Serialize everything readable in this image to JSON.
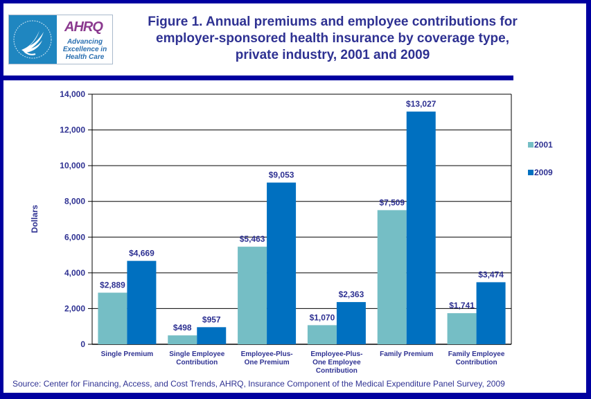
{
  "logo": {
    "hhs_name": "hhs-eagle-logo",
    "ahrq_word": "AHRQ",
    "ahrq_tagline": [
      "Advancing",
      "Excellence in",
      "Health Care"
    ]
  },
  "title_lines": [
    "Figure 1. Annual premiums and employee contributions for",
    "employer-sponsored health insurance by coverage type,",
    "private industry, 2001 and 2009"
  ],
  "source": "Source: Center for Financing, Access, and Cost Trends, AHRQ, Insurance Component of the Medical Expenditure Panel Survey, 2009",
  "colors": {
    "series_2001": "#75BEC5",
    "series_2009": "#0070C0",
    "text": "#2E3192",
    "border": "#0000A0"
  },
  "chart_data": {
    "type": "bar",
    "title": "Figure 1. Annual premiums and employee contributions for employer-sponsored health insurance by coverage type, private industry, 2001 and 2009",
    "xlabel": "",
    "ylabel": "Dollars",
    "ylim": [
      0,
      14000
    ],
    "yticks": [
      0,
      2000,
      4000,
      6000,
      8000,
      10000,
      12000,
      14000
    ],
    "ytick_labels": [
      "0",
      "2,000",
      "4,000",
      "6,000",
      "8,000",
      "10,000",
      "12,000",
      "14,000"
    ],
    "grid": true,
    "legend_position": "right",
    "categories": [
      [
        "Single Premium"
      ],
      [
        "Single Employee",
        "Contribution"
      ],
      [
        "Employee-Plus-",
        "One Premium"
      ],
      [
        "Employee-Plus-",
        "One  Employee",
        "Contribution"
      ],
      [
        "Family Premium"
      ],
      [
        "Family Employee",
        "Contribution"
      ]
    ],
    "series": [
      {
        "name": "2001",
        "values": [
          2889,
          498,
          5463,
          1070,
          7509,
          1741
        ],
        "labels": [
          "$2,889",
          "$498",
          "$5,463",
          "$1,070",
          "$7,509",
          "$1,741"
        ]
      },
      {
        "name": "2009",
        "values": [
          4669,
          957,
          9053,
          2363,
          13027,
          3474
        ],
        "labels": [
          "$4,669",
          "$957",
          "$9,053",
          "$2,363",
          "$13,027",
          "$3,474"
        ]
      }
    ]
  }
}
